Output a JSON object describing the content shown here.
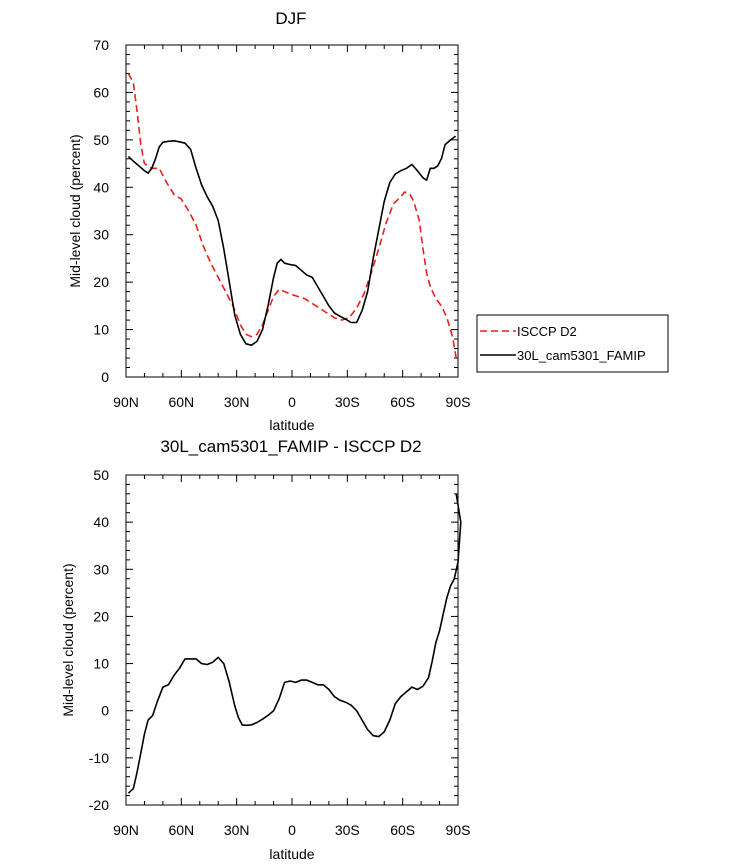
{
  "chart_data": [
    {
      "type": "line",
      "title": "DJF",
      "xlabel": "latitude",
      "ylabel": "Mid-level cloud (percent)",
      "xlim": [
        90,
        -90
      ],
      "ylim": [
        0,
        70
      ],
      "x_ticks": [
        90,
        60,
        30,
        0,
        -30,
        -60,
        -90
      ],
      "x_tick_labels": [
        "90N",
        "60N",
        "30N",
        "0",
        "30S",
        "60S",
        "90S"
      ],
      "y_ticks": [
        0,
        10,
        20,
        30,
        40,
        50,
        60,
        70
      ],
      "y_tick_labels": [
        "0",
        "10",
        "20",
        "30",
        "40",
        "50",
        "60",
        "70"
      ],
      "legend_position": "right",
      "series": [
        {
          "name": "ISCCP D2",
          "color": "#e8211c",
          "style": "dashed",
          "points": [
            [
              88.7,
              64
            ],
            [
              86,
              62
            ],
            [
              84,
              56
            ],
            [
              82,
              49
            ],
            [
              80,
              45
            ],
            [
              76,
              44
            ],
            [
              72,
              44
            ],
            [
              68,
              41
            ],
            [
              64,
              38.5
            ],
            [
              60,
              37.5
            ],
            [
              56,
              35
            ],
            [
              52,
              32
            ],
            [
              48,
              27.5
            ],
            [
              44,
              24
            ],
            [
              40,
              21
            ],
            [
              36,
              18
            ],
            [
              32,
              15
            ],
            [
              28,
              11
            ],
            [
              25,
              9
            ],
            [
              22,
              8.5
            ],
            [
              19,
              9
            ],
            [
              16,
              11
            ],
            [
              13,
              14
            ],
            [
              10,
              17
            ],
            [
              7,
              18.5
            ],
            [
              4,
              18
            ],
            [
              1,
              17.5
            ],
            [
              -3,
              17
            ],
            [
              -7,
              16.5
            ],
            [
              -11,
              15.5
            ],
            [
              -15,
              14.5
            ],
            [
              -19,
              13.5
            ],
            [
              -23,
              12.5
            ],
            [
              -27,
              12
            ],
            [
              -31,
              12.5
            ],
            [
              -35,
              14.5
            ],
            [
              -39,
              17.5
            ],
            [
              -43,
              22
            ],
            [
              -47,
              27
            ],
            [
              -51,
              32.5
            ],
            [
              -55,
              36.5
            ],
            [
              -59,
              38
            ],
            [
              -61,
              39
            ],
            [
              -64,
              38.5
            ],
            [
              -66,
              37
            ],
            [
              -69,
              33
            ],
            [
              -71,
              27
            ],
            [
              -73,
              22
            ],
            [
              -75,
              19
            ],
            [
              -78,
              16.5
            ],
            [
              -81,
              15
            ],
            [
              -84,
              12.5
            ],
            [
              -87,
              8.5
            ],
            [
              -89,
              4
            ]
          ]
        },
        {
          "name": "30L_cam5301_FAMIP",
          "color": "#000000",
          "style": "solid",
          "points": [
            [
              88.7,
              46.5
            ],
            [
              86,
              45.5
            ],
            [
              83,
              44.5
            ],
            [
              80,
              43.5
            ],
            [
              78,
              43
            ],
            [
              76,
              44
            ],
            [
              74,
              46
            ],
            [
              72,
              48.5
            ],
            [
              70,
              49.5
            ],
            [
              67,
              49.7
            ],
            [
              64,
              49.8
            ],
            [
              61,
              49.6
            ],
            [
              58,
              49.3
            ],
            [
              55,
              48
            ],
            [
              52,
              44
            ],
            [
              49,
              40.5
            ],
            [
              46,
              38
            ],
            [
              43,
              36
            ],
            [
              40,
              33
            ],
            [
              37,
              27
            ],
            [
              34,
              20
            ],
            [
              31,
              13
            ],
            [
              28,
              9
            ],
            [
              25,
              7
            ],
            [
              22,
              6.7
            ],
            [
              19,
              7.5
            ],
            [
              16,
              10
            ],
            [
              13,
              15
            ],
            [
              10,
              21
            ],
            [
              8,
              24
            ],
            [
              6,
              24.8
            ],
            [
              4,
              24
            ],
            [
              1,
              23.7
            ],
            [
              -2,
              23.5
            ],
            [
              -5,
              22.5
            ],
            [
              -8,
              21.5
            ],
            [
              -11,
              21
            ],
            [
              -14,
              19
            ],
            [
              -17,
              17
            ],
            [
              -20,
              15
            ],
            [
              -23,
              13.5
            ],
            [
              -26,
              12.8
            ],
            [
              -29,
              12.2
            ],
            [
              -32,
              11.5
            ],
            [
              -35,
              11.5
            ],
            [
              -38,
              14
            ],
            [
              -41,
              18
            ],
            [
              -44,
              25
            ],
            [
              -47,
              31
            ],
            [
              -50,
              37
            ],
            [
              -53,
              41
            ],
            [
              -56,
              42.8
            ],
            [
              -59,
              43.5
            ],
            [
              -62,
              44
            ],
            [
              -65,
              44.8
            ],
            [
              -68,
              43.5
            ],
            [
              -71,
              42
            ],
            [
              -73,
              41.5
            ],
            [
              -75,
              44
            ],
            [
              -77,
              44
            ],
            [
              -79,
              44.5
            ],
            [
              -81,
              46
            ],
            [
              -83,
              49
            ],
            [
              -86,
              50
            ],
            [
              -88.7,
              50.8
            ]
          ]
        }
      ]
    },
    {
      "type": "line",
      "title": "30L_cam5301_FAMIP - ISCCP D2",
      "xlabel": "latitude",
      "ylabel": "Mid-level cloud (percent)",
      "xlim": [
        90,
        -90
      ],
      "ylim": [
        -20,
        50
      ],
      "x_ticks": [
        90,
        60,
        30,
        0,
        -30,
        -60,
        -90
      ],
      "x_tick_labels": [
        "90N",
        "60N",
        "30N",
        "0",
        "30S",
        "60S",
        "90S"
      ],
      "y_ticks": [
        -20,
        -10,
        0,
        10,
        20,
        30,
        40,
        50
      ],
      "y_tick_labels": [
        "-20",
        "-10",
        "0",
        "10",
        "20",
        "30",
        "40",
        "50"
      ],
      "series": [
        {
          "color": "#000000",
          "style": "solid",
          "points": [
            [
              88.7,
              -17.5
            ],
            [
              86,
              -16.5
            ],
            [
              84,
              -13
            ],
            [
              82,
              -9
            ],
            [
              80,
              -5
            ],
            [
              78,
              -2
            ],
            [
              75.5,
              -1
            ],
            [
              73,
              2
            ],
            [
              70,
              5
            ],
            [
              67,
              5.5
            ],
            [
              64,
              7.5
            ],
            [
              61,
              9
            ],
            [
              58,
              11
            ],
            [
              55,
              11
            ],
            [
              52,
              11
            ],
            [
              49,
              10
            ],
            [
              46,
              9.8
            ],
            [
              43,
              10.3
            ],
            [
              40,
              11.3
            ],
            [
              37,
              10
            ],
            [
              34,
              6
            ],
            [
              31,
              1
            ],
            [
              29,
              -1.5
            ],
            [
              27,
              -3
            ],
            [
              25,
              -3.1
            ],
            [
              22,
              -3
            ],
            [
              19,
              -2.5
            ],
            [
              16,
              -1.8
            ],
            [
              13,
              -1
            ],
            [
              10,
              0
            ],
            [
              7,
              2.5
            ],
            [
              4,
              6
            ],
            [
              1,
              6.3
            ],
            [
              -2,
              6
            ],
            [
              -5,
              6.5
            ],
            [
              -8,
              6.5
            ],
            [
              -11,
              6
            ],
            [
              -14,
              5.5
            ],
            [
              -17,
              5.5
            ],
            [
              -20,
              4.5
            ],
            [
              -23,
              3
            ],
            [
              -26,
              2.2
            ],
            [
              -29,
              1.8
            ],
            [
              -32,
              1.2
            ],
            [
              -35,
              0
            ],
            [
              -38,
              -2
            ],
            [
              -41,
              -4
            ],
            [
              -44,
              -5.3
            ],
            [
              -47,
              -5.5
            ],
            [
              -50,
              -4.5
            ],
            [
              -53,
              -2
            ],
            [
              -56,
              1.5
            ],
            [
              -59,
              3
            ],
            [
              -62,
              4
            ],
            [
              -65,
              5
            ],
            [
              -68,
              4.5
            ],
            [
              -71,
              5.2
            ],
            [
              -74,
              7
            ],
            [
              -76,
              10.5
            ],
            [
              -78,
              14.5
            ],
            [
              -80,
              17
            ],
            [
              -82,
              20.5
            ],
            [
              -84,
              24
            ],
            [
              -86,
              26.5
            ],
            [
              -88,
              28
            ],
            [
              -90,
              31.5
            ],
            [
              -91.5,
              40
            ],
            [
              -89,
              46
            ]
          ]
        }
      ]
    }
  ]
}
